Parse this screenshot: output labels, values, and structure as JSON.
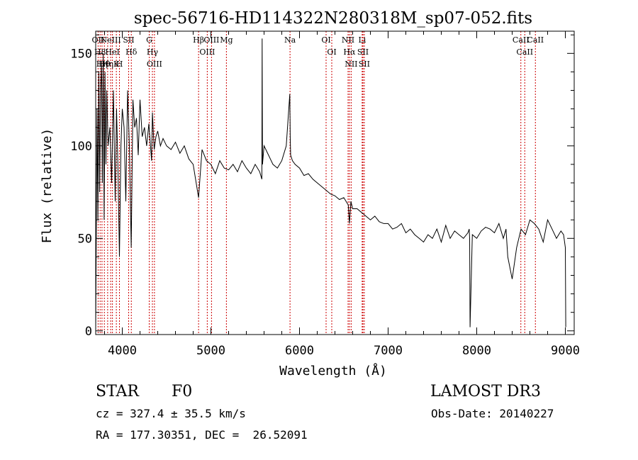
{
  "chart_data": {
    "type": "line",
    "title": "spec-56716-HD114322N280318M_sp07-052.fits",
    "xlabel": "Wavelength (Å)",
    "ylabel": "Flux (relative)",
    "xlim": [
      3700,
      9100
    ],
    "ylim": [
      -2,
      162
    ],
    "x_ticks": [
      4000,
      5000,
      6000,
      7000,
      8000,
      9000
    ],
    "x_tick_labels": [
      "4000",
      "5000",
      "6000",
      "7000",
      "8000",
      "9000"
    ],
    "y_ticks": [
      0,
      50,
      100,
      150
    ],
    "y_tick_labels": [
      "0",
      "50",
      "100",
      "150"
    ],
    "series": [
      {
        "name": "flux",
        "x": [
          3700,
          3715,
          3725,
          3735,
          3745,
          3755,
          3765,
          3775,
          3785,
          3795,
          3805,
          3815,
          3825,
          3840,
          3860,
          3880,
          3900,
          3920,
          3935,
          3950,
          3968,
          3985,
          4000,
          4020,
          4040,
          4060,
          4080,
          4101,
          4120,
          4140,
          4160,
          4180,
          4200,
          4225,
          4250,
          4275,
          4300,
          4330,
          4340,
          4360,
          4380,
          4400,
          4430,
          4460,
          4500,
          4550,
          4600,
          4650,
          4700,
          4750,
          4800,
          4861,
          4900,
          4950,
          5000,
          5050,
          5100,
          5150,
          5200,
          5250,
          5300,
          5350,
          5400,
          5450,
          5500,
          5550,
          5575,
          5578,
          5582,
          5600,
          5650,
          5700,
          5750,
          5800,
          5850,
          5890,
          5895,
          5900,
          5920,
          5950,
          6000,
          6050,
          6100,
          6150,
          6200,
          6250,
          6300,
          6350,
          6400,
          6450,
          6500,
          6550,
          6563,
          6580,
          6600,
          6650,
          6700,
          6750,
          6800,
          6850,
          6900,
          6950,
          7000,
          7050,
          7100,
          7150,
          7200,
          7250,
          7300,
          7350,
          7400,
          7450,
          7500,
          7550,
          7600,
          7650,
          7700,
          7750,
          7800,
          7850,
          7900,
          7915,
          7920,
          7925,
          7950,
          8000,
          8050,
          8100,
          8150,
          8200,
          8250,
          8300,
          8330,
          8350,
          8400,
          8450,
          8500,
          8550,
          8600,
          8650,
          8700,
          8750,
          8800,
          8850,
          8900,
          8950,
          8980,
          9000,
          9005
        ],
        "values": [
          0,
          120,
          60,
          140,
          75,
          130,
          145,
          80,
          150,
          60,
          140,
          90,
          130,
          100,
          110,
          80,
          130,
          70,
          120,
          90,
          40,
          100,
          120,
          110,
          70,
          130,
          100,
          45,
          125,
          110,
          115,
          95,
          125,
          105,
          110,
          100,
          112,
          92,
          118,
          98,
          105,
          108,
          100,
          104,
          100,
          98,
          102,
          96,
          100,
          93,
          90,
          72,
          98,
          92,
          90,
          85,
          92,
          88,
          87,
          90,
          86,
          92,
          88,
          85,
          90,
          86,
          82,
          158,
          90,
          100,
          95,
          90,
          88,
          92,
          100,
          128,
          105,
          95,
          92,
          90,
          88,
          84,
          85,
          82,
          80,
          78,
          76,
          74,
          73,
          71,
          72,
          68,
          58,
          70,
          66,
          66,
          64,
          62,
          60,
          62,
          59,
          58,
          58,
          55,
          56,
          58,
          53,
          55,
          52,
          50,
          48,
          52,
          50,
          55,
          48,
          57,
          50,
          54,
          52,
          50,
          53,
          55,
          50,
          2,
          52,
          50,
          54,
          56,
          55,
          53,
          58,
          50,
          55,
          40,
          28,
          45,
          55,
          52,
          60,
          58,
          55,
          48,
          60,
          55,
          50,
          54,
          52,
          45,
          2
        ]
      }
    ],
    "line_markers": [
      {
        "wl": 3727,
        "label": "OII"
      },
      {
        "wl": 3750,
        "label": "H8"
      },
      {
        "wl": 3771,
        "label": "Hη"
      },
      {
        "wl": 3798,
        "label": "Hθ"
      },
      {
        "wl": 3835,
        "label": "Hη"
      },
      {
        "wl": 3869,
        "label": "NeIII"
      },
      {
        "wl": 3889,
        "label": "HeI"
      },
      {
        "wl": 3933,
        "label": "K"
      },
      {
        "wl": 3968,
        "label": "H"
      },
      {
        "wl": 4072,
        "label": "SII"
      },
      {
        "wl": 4102,
        "label": "Hδ"
      },
      {
        "wl": 4304,
        "label": "G"
      },
      {
        "wl": 4340,
        "label": "Hγ"
      },
      {
        "wl": 4363,
        "label": "OIII"
      },
      {
        "wl": 4861,
        "label": "Hβ"
      },
      {
        "wl": 4959,
        "label": "OIII"
      },
      {
        "wl": 5007,
        "label": "OIII"
      },
      {
        "wl": 5175,
        "label": "Mg"
      },
      {
        "wl": 5893,
        "label": "Na"
      },
      {
        "wl": 6300,
        "label": "OI"
      },
      {
        "wl": 6364,
        "label": "OI"
      },
      {
        "wl": 6548,
        "label": "NII"
      },
      {
        "wl": 6563,
        "label": "Hα"
      },
      {
        "wl": 6583,
        "label": "NII"
      },
      {
        "wl": 6707,
        "label": "Li"
      },
      {
        "wl": 6716,
        "label": "SII"
      },
      {
        "wl": 6731,
        "label": "SII"
      },
      {
        "wl": 8498,
        "label": "CaII"
      },
      {
        "wl": 8542,
        "label": "CaII"
      },
      {
        "wl": 8662,
        "label": "CaII"
      }
    ]
  },
  "info": {
    "object_class": "STAR",
    "subclass": "F0",
    "survey": "LAMOST DR3",
    "cz": "cz = 327.4 ± 35.5 km/s",
    "obs_date": "Obs-Date: 20140227",
    "radec": "RA = 177.30351, DEC =  26.52091"
  }
}
